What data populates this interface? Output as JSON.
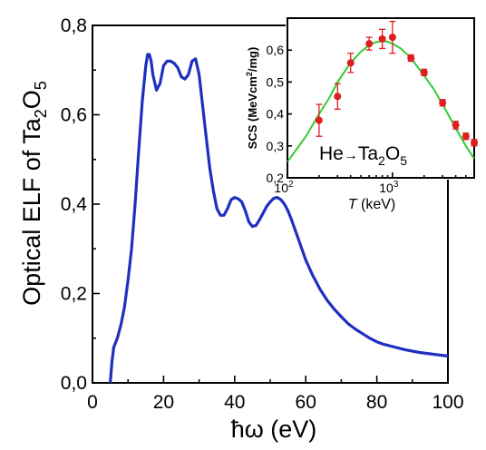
{
  "chart_data": [
    {
      "type": "line",
      "xlabel": "ħω (eV)",
      "ylabel_main": "Optical ELF of Ta",
      "ylabel_sub": "2",
      "ylabel_mid": "O",
      "ylabel_sub2": "5",
      "xlim": [
        0,
        100
      ],
      "ylim": [
        0,
        0.8
      ],
      "x_ticks": [
        "0",
        "20",
        "40",
        "60",
        "80",
        "100"
      ],
      "y_ticks": [
        "0,0",
        "0,2",
        "0,4",
        "0,6",
        "0,8"
      ],
      "line_color": "#1f2fc0",
      "series": [
        {
          "x": [
            5,
            5.5,
            6,
            7,
            8,
            9,
            10,
            11,
            12,
            13,
            14,
            15,
            15.5,
            16,
            16.5,
            17,
            18,
            19,
            20,
            21,
            22,
            23,
            24,
            25,
            26,
            27,
            28,
            29,
            30,
            31,
            32,
            33,
            34,
            35,
            36,
            37,
            38,
            39,
            40,
            41,
            42,
            43,
            44,
            45,
            46,
            47,
            48,
            49,
            50,
            51,
            52,
            53,
            54,
            55,
            56,
            58,
            60,
            62,
            64,
            66,
            68,
            70,
            72,
            74,
            76,
            78,
            80,
            82,
            85,
            88,
            90,
            92,
            95,
            98,
            100
          ],
          "y": [
            0.0,
            0.05,
            0.08,
            0.1,
            0.13,
            0.17,
            0.23,
            0.3,
            0.4,
            0.52,
            0.63,
            0.71,
            0.735,
            0.735,
            0.72,
            0.69,
            0.655,
            0.67,
            0.71,
            0.72,
            0.72,
            0.715,
            0.705,
            0.685,
            0.68,
            0.69,
            0.72,
            0.725,
            0.69,
            0.62,
            0.55,
            0.48,
            0.43,
            0.39,
            0.375,
            0.375,
            0.39,
            0.41,
            0.415,
            0.412,
            0.405,
            0.385,
            0.36,
            0.35,
            0.352,
            0.365,
            0.38,
            0.395,
            0.405,
            0.413,
            0.415,
            0.41,
            0.4,
            0.385,
            0.365,
            0.32,
            0.275,
            0.24,
            0.21,
            0.185,
            0.165,
            0.148,
            0.132,
            0.12,
            0.11,
            0.1,
            0.092,
            0.086,
            0.08,
            0.074,
            0.071,
            0.068,
            0.065,
            0.062,
            0.06
          ]
        }
      ]
    },
    {
      "type": "scatter",
      "xlabel_italic": "T",
      "xlabel_rest": " (keV)",
      "ylabel": "SCS (MeVcm",
      "ylabel_sup": "2",
      "ylabel_end": "/mg)",
      "x_scale": "log",
      "xlim": [
        100,
        6000
      ],
      "ylim": [
        0.2,
        0.7
      ],
      "x_ticks": [
        {
          "base": "10",
          "exp": "2",
          "value": 100
        },
        {
          "base": "10",
          "exp": "3",
          "value": 1000
        }
      ],
      "y_ticks": [
        "0,2",
        "0,3",
        "0,4",
        "0,5",
        "0,6"
      ],
      "annotation_main": "He",
      "annotation_arrow": "→",
      "annotation_ta": "Ta",
      "annotation_sub1": "2",
      "annotation_o": "O",
      "annotation_sub2": "5",
      "curve_color": "#33cc33",
      "point_color": "#dd1f1f",
      "curve": {
        "x": [
          100,
          150,
          200,
          250,
          300,
          400,
          500,
          600,
          700,
          800,
          900,
          1000,
          1200,
          1500,
          2000,
          2500,
          3000,
          3500,
          4000,
          5000,
          6000
        ],
        "y": [
          0.25,
          0.33,
          0.4,
          0.45,
          0.5,
          0.56,
          0.595,
          0.615,
          0.625,
          0.628,
          0.626,
          0.62,
          0.605,
          0.575,
          0.52,
          0.475,
          0.43,
          0.39,
          0.355,
          0.3,
          0.26
        ]
      },
      "points": [
        {
          "x": 200,
          "y": 0.38,
          "err": 0.05
        },
        {
          "x": 300,
          "y": 0.455,
          "err": 0.04
        },
        {
          "x": 400,
          "y": 0.56,
          "err": 0.03
        },
        {
          "x": 600,
          "y": 0.62,
          "err": 0.02
        },
        {
          "x": 800,
          "y": 0.635,
          "err": 0.03
        },
        {
          "x": 1000,
          "y": 0.64,
          "err": 0.05
        },
        {
          "x": 1500,
          "y": 0.575,
          "err": 0.01
        },
        {
          "x": 2000,
          "y": 0.53,
          "err": 0.01
        },
        {
          "x": 3000,
          "y": 0.435,
          "err": 0.01
        },
        {
          "x": 4000,
          "y": 0.365,
          "err": 0.012
        },
        {
          "x": 5000,
          "y": 0.33,
          "err": 0.01
        },
        {
          "x": 6000,
          "y": 0.31,
          "err": 0.01
        }
      ]
    }
  ]
}
